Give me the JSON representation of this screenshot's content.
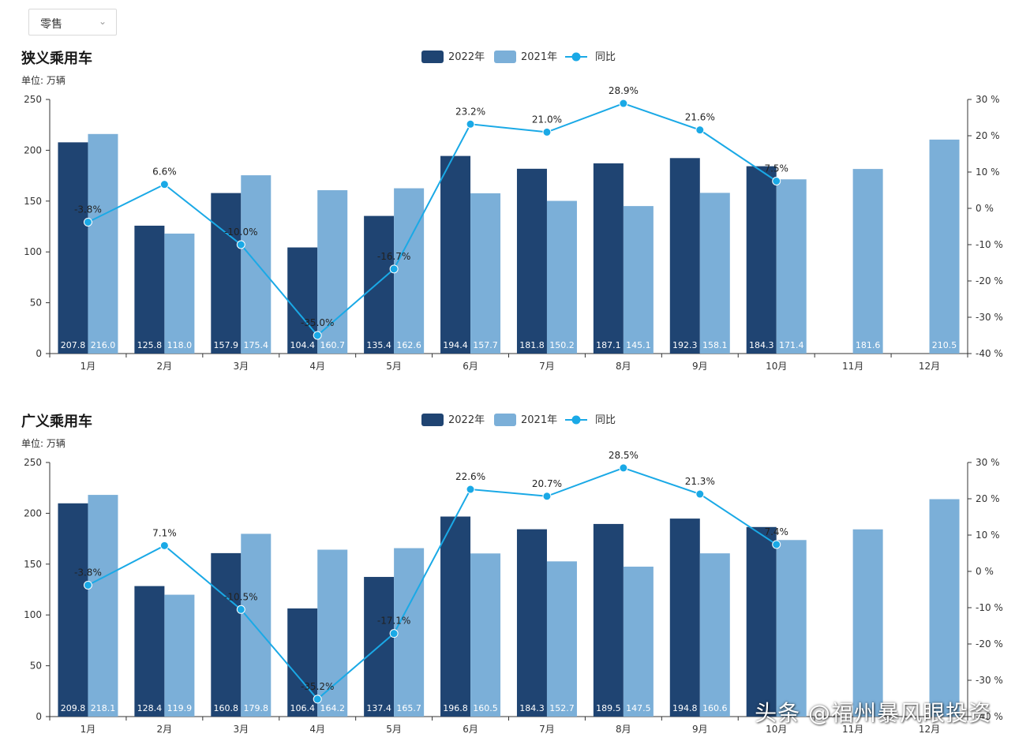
{
  "filter": {
    "selected": "零售"
  },
  "watermark": "头条 @福州暴风眼投资",
  "chart_data": [
    {
      "type": "bar",
      "title": "狭义乘用车",
      "unit_label": "单位:  万辆",
      "categories": [
        "1月",
        "2月",
        "3月",
        "4月",
        "5月",
        "6月",
        "7月",
        "8月",
        "9月",
        "10月",
        "11月",
        "12月"
      ],
      "series": [
        {
          "name": "2022年",
          "type": "bar",
          "color": "#1f4472",
          "values": [
            207.8,
            125.8,
            157.9,
            104.4,
            135.4,
            194.4,
            181.8,
            187.1,
            192.3,
            184.3,
            null,
            null
          ],
          "labels": [
            "207.8",
            "125.8",
            "157.9",
            "104.4",
            "135.4",
            "194.4",
            "181.8",
            "187.1",
            "192.3",
            "184.3",
            "",
            ""
          ]
        },
        {
          "name": "2021年",
          "type": "bar",
          "color": "#7bafd8",
          "values": [
            216.0,
            118.0,
            175.4,
            160.7,
            162.6,
            157.7,
            150.2,
            145.1,
            158.1,
            171.4,
            181.6,
            210.5
          ],
          "labels": [
            "216.0",
            "118.0",
            "175.4",
            "160.7",
            "162.6",
            "157.7",
            "150.2",
            "145.1",
            "158.1",
            "171.4",
            "181.6",
            "210.5"
          ]
        },
        {
          "name": "同比",
          "type": "line",
          "color": "#1aa9e6",
          "axis": "right",
          "values": [
            -3.8,
            6.6,
            -10.0,
            -35.0,
            -16.7,
            23.2,
            21.0,
            28.9,
            21.6,
            7.5,
            null,
            null
          ],
          "labels": [
            "-3.8%",
            "6.6%",
            "-10.0%",
            "-35.0%",
            "-16.7%",
            "23.2%",
            "21.0%",
            "28.9%",
            "21.6%",
            "7.5%",
            "",
            ""
          ]
        }
      ],
      "ylim": [
        0,
        250
      ],
      "yticks": [
        "0",
        "50",
        "100",
        "150",
        "200",
        "250"
      ],
      "y2lim": [
        -40,
        30
      ],
      "y2ticks": [
        "-40 %",
        "-30 %",
        "-20 %",
        "-10 %",
        "0 %",
        "10 %",
        "20 %",
        "30 %"
      ],
      "legend": "top-center"
    },
    {
      "type": "bar",
      "title": "广义乘用车",
      "unit_label": "单位:  万辆",
      "categories": [
        "1月",
        "2月",
        "3月",
        "4月",
        "5月",
        "6月",
        "7月",
        "8月",
        "9月",
        "10月",
        "11月",
        "12月"
      ],
      "series": [
        {
          "name": "2022年",
          "type": "bar",
          "color": "#1f4472",
          "values": [
            209.8,
            128.4,
            160.8,
            106.4,
            137.4,
            196.8,
            184.3,
            189.5,
            194.8,
            186.5,
            null,
            null
          ],
          "labels": [
            "209.8",
            "128.4",
            "160.8",
            "106.4",
            "137.4",
            "196.8",
            "184.3",
            "189.5",
            "194.8",
            "",
            "",
            ""
          ]
        },
        {
          "name": "2021年",
          "type": "bar",
          "color": "#7bafd8",
          "values": [
            218.1,
            119.9,
            179.8,
            164.2,
            165.7,
            160.5,
            152.7,
            147.5,
            160.6,
            173.7,
            184.2,
            213.9
          ],
          "labels": [
            "218.1",
            "119.9",
            "179.8",
            "164.2",
            "165.7",
            "160.5",
            "152.7",
            "147.5",
            "160.6",
            "",
            "",
            ""
          ]
        },
        {
          "name": "同比",
          "type": "line",
          "color": "#1aa9e6",
          "axis": "right",
          "values": [
            -3.8,
            7.1,
            -10.5,
            -35.2,
            -17.1,
            22.6,
            20.7,
            28.5,
            21.3,
            7.4,
            null,
            null
          ],
          "labels": [
            "-3.8%",
            "7.1%",
            "-10.5%",
            "-35.2%",
            "-17.1%",
            "22.6%",
            "20.7%",
            "28.5%",
            "21.3%",
            "7.4%",
            "",
            ""
          ]
        }
      ],
      "ylim": [
        0,
        250
      ],
      "yticks": [
        "0",
        "50",
        "100",
        "150",
        "200",
        "250"
      ],
      "y2lim": [
        -40,
        30
      ],
      "y2ticks": [
        "-40 %",
        "-30 %",
        "-20 %",
        "-10 %",
        "0 %",
        "10 %",
        "20 %",
        "30 %"
      ],
      "legend": "top-center"
    }
  ]
}
